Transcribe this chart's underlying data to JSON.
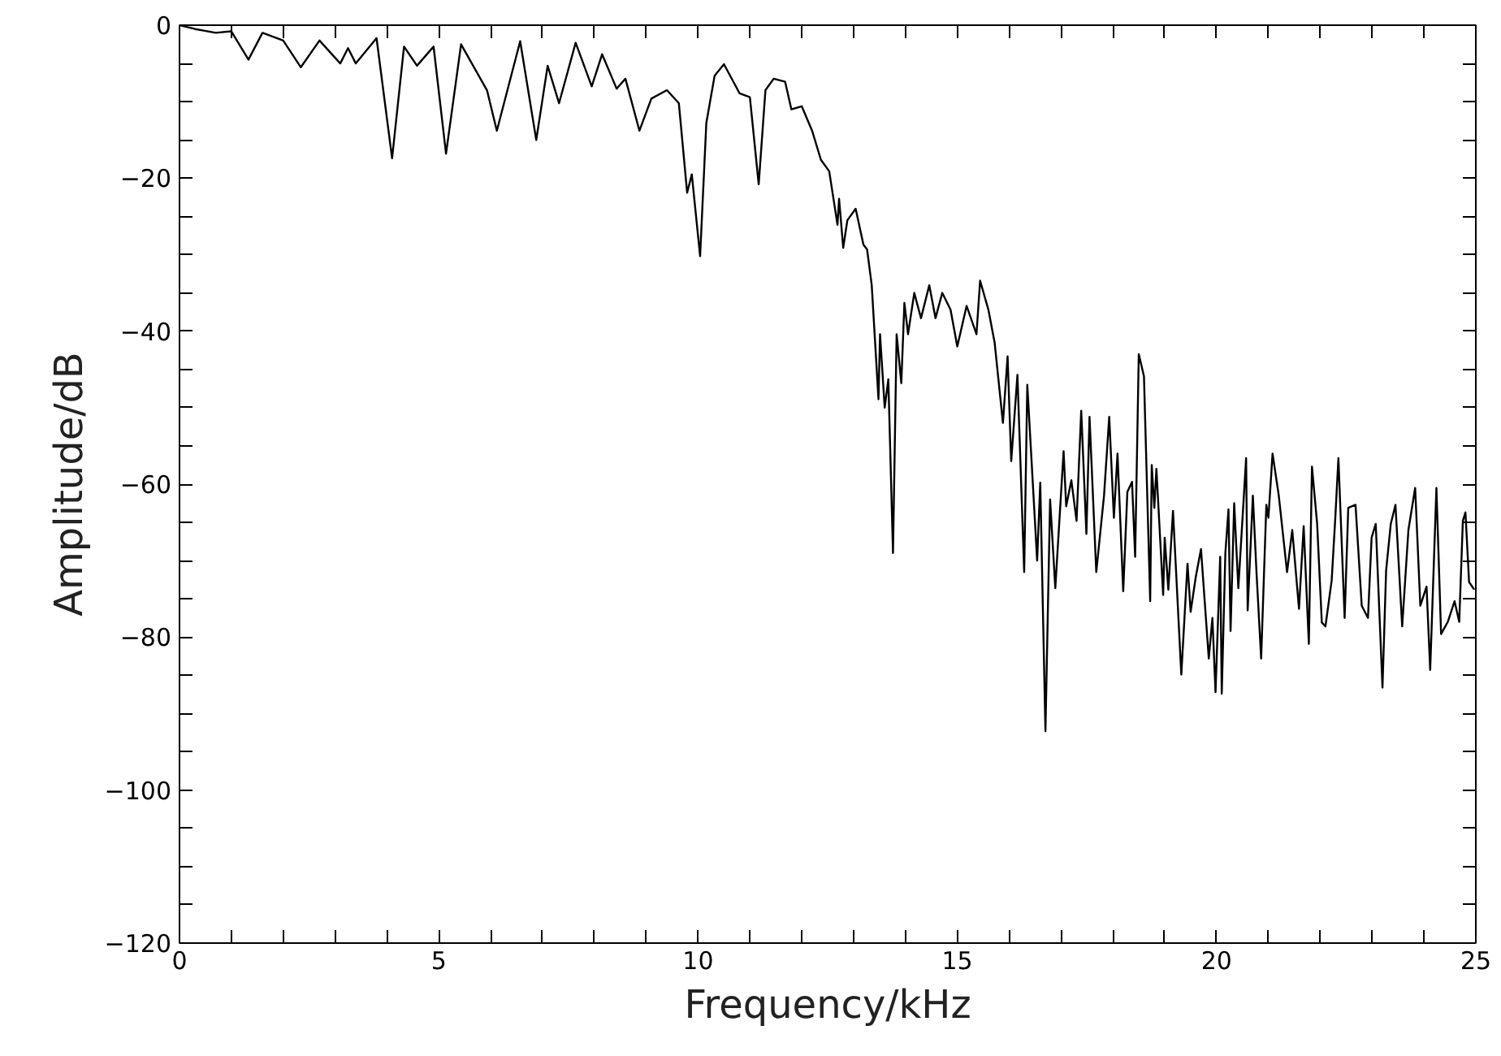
{
  "chart_data": {
    "type": "line",
    "xlabel": "Frequency/kHz",
    "ylabel": "Amplitude/dB",
    "xlim": [
      0,
      25
    ],
    "ylim": [
      -120,
      0
    ],
    "xticks": [
      0,
      {
        "value": 1,
        "label": null
      },
      {
        "value": 2,
        "label": null
      },
      {
        "value": 3,
        "label": null
      },
      {
        "value": 4,
        "label": null
      },
      5,
      {
        "value": 6,
        "label": null
      },
      {
        "value": 7,
        "label": null
      },
      {
        "value": 8,
        "label": null
      },
      {
        "value": 9,
        "label": null
      },
      10,
      {
        "value": 11,
        "label": null
      },
      {
        "value": 12,
        "label": null
      },
      {
        "value": 13,
        "label": null
      },
      {
        "value": 14,
        "label": null
      },
      15,
      {
        "value": 16,
        "label": null
      },
      {
        "value": 17,
        "label": null
      },
      {
        "value": 18,
        "label": null
      },
      {
        "value": 19,
        "label": null
      },
      20,
      {
        "value": 21,
        "label": null
      },
      {
        "value": 22,
        "label": null
      },
      {
        "value": 23,
        "label": null
      },
      {
        "value": 24,
        "label": null
      },
      25
    ],
    "yticks": [
      -120,
      {
        "value": -115,
        "label": null
      },
      {
        "value": -110,
        "label": null
      },
      {
        "value": -105,
        "label": null
      },
      -100,
      {
        "value": -95,
        "label": null
      },
      {
        "value": -90,
        "label": null
      },
      {
        "value": -85,
        "label": null
      },
      -80,
      {
        "value": -75,
        "label": null
      },
      {
        "value": -70,
        "label": null
      },
      {
        "value": -65,
        "label": null
      },
      -60,
      {
        "value": -55,
        "label": null
      },
      {
        "value": -50,
        "label": null
      },
      {
        "value": -45,
        "label": null
      },
      -40,
      {
        "value": -35,
        "label": null
      },
      {
        "value": -30,
        "label": null
      },
      {
        "value": -25,
        "label": null
      },
      -20,
      {
        "value": -15,
        "label": null
      },
      {
        "value": -10,
        "label": null
      },
      {
        "value": -5,
        "label": null
      },
      0
    ],
    "grid": false,
    "marker": "none",
    "line_style": "solid",
    "series": [
      {
        "color": "#000000",
        "x": [
          0,
          0.3,
          0.7,
          1.0,
          1.33,
          1.6,
          2.0,
          2.34,
          2.7,
          3.1,
          3.25,
          3.4,
          3.8,
          4.1,
          4.33,
          4.58,
          4.9,
          5.14,
          5.43,
          5.93,
          6.12,
          6.57,
          6.88,
          7.1,
          7.32,
          7.64,
          7.95,
          8.15,
          8.43,
          8.6,
          8.87,
          9.1,
          9.4,
          9.63,
          9.79,
          9.88,
          10.04,
          10.16,
          10.32,
          10.5,
          10.8,
          11.0,
          11.17,
          11.3,
          11.46,
          11.68,
          11.8,
          12.0,
          12.2,
          12.37,
          12.53,
          12.69,
          12.72,
          12.8,
          12.88,
          13.04,
          13.19,
          13.26,
          13.35,
          13.48,
          13.51,
          13.6,
          13.67,
          13.76,
          13.83,
          13.92,
          13.98,
          14.05,
          14.17,
          14.3,
          14.46,
          14.58,
          14.71,
          14.87,
          15.0,
          15.18,
          15.37,
          15.44,
          15.6,
          15.72,
          15.88,
          15.97,
          16.04,
          16.16,
          16.29,
          16.35,
          16.54,
          16.6,
          16.7,
          16.79,
          16.89,
          17.05,
          17.1,
          17.2,
          17.3,
          17.39,
          17.49,
          17.55,
          17.68,
          17.83,
          17.93,
          18.02,
          18.09,
          18.2,
          18.28,
          18.37,
          18.43,
          18.5,
          18.6,
          18.72,
          18.75,
          18.8,
          18.84,
          18.97,
          19.0,
          19.07,
          19.16,
          19.22,
          19.32,
          19.44,
          19.5,
          19.6,
          19.7,
          19.85,
          19.92,
          19.98,
          20.07,
          20.1,
          20.17,
          20.23,
          20.27,
          20.34,
          20.42,
          20.57,
          20.6,
          20.7,
          20.77,
          20.86,
          20.96,
          21.0,
          21.08,
          21.2,
          21.36,
          21.46,
          21.59,
          21.68,
          21.78,
          21.84,
          21.94,
          22.03,
          22.1,
          22.22,
          22.29,
          22.35,
          22.47,
          22.54,
          22.68,
          22.8,
          22.92,
          22.99,
          23.07,
          23.2,
          23.27,
          23.36,
          23.45,
          23.58,
          23.7,
          23.83,
          23.93,
          24.05,
          24.12,
          24.24,
          24.33,
          24.46,
          24.59,
          24.68,
          24.75,
          24.8,
          24.87,
          24.97
        ],
        "values": [
          0,
          -0.5,
          -1,
          -0.8,
          -4.5,
          -1,
          -2,
          -5.5,
          -2,
          -5,
          -3,
          -5,
          -1.7,
          -17.4,
          -2.8,
          -5.3,
          -2.8,
          -16.8,
          -2.5,
          -8.5,
          -13.8,
          -2.1,
          -15,
          -5.3,
          -10.2,
          -2.3,
          -8,
          -3.8,
          -8.3,
          -7,
          -13.8,
          -9.6,
          -8.5,
          -10.2,
          -21.9,
          -19.5,
          -30.2,
          -12.8,
          -6.6,
          -5.1,
          -8.9,
          -9.4,
          -20.8,
          -8.5,
          -7,
          -7.4,
          -11,
          -10.6,
          -13.8,
          -17.6,
          -19.1,
          -26.1,
          -22.7,
          -29.1,
          -25.5,
          -24,
          -28.7,
          -29.3,
          -34,
          -48.9,
          -40.4,
          -50,
          -46.3,
          -69,
          -40.4,
          -46.8,
          -36.3,
          -40.4,
          -35,
          -38.3,
          -34,
          -38.3,
          -35,
          -37.2,
          -42,
          -36.7,
          -40.4,
          -33.4,
          -37.2,
          -41.5,
          -52,
          -43.3,
          -57,
          -45.7,
          -71.5,
          -47,
          -70,
          -59.8,
          -92.3,
          -62,
          -73.6,
          -55.7,
          -62.9,
          -59.5,
          -64.8,
          -50.4,
          -66.5,
          -51.2,
          -71.5,
          -61.5,
          -51.2,
          -64.4,
          -56,
          -74,
          -61,
          -59.7,
          -69.5,
          -43,
          -45.9,
          -75.3,
          -57.5,
          -63.1,
          -58,
          -74.5,
          -67,
          -73.8,
          -63.5,
          -71.5,
          -84.9,
          -70.4,
          -76.7,
          -72.1,
          -68.5,
          -82.8,
          -77.5,
          -87.2,
          -69.5,
          -87.4,
          -69,
          -63.3,
          -79.2,
          -62.5,
          -73.6,
          -56.6,
          -76.5,
          -61.5,
          -71.5,
          -82.8,
          -62.7,
          -64.4,
          -56,
          -61.5,
          -71.5,
          -66,
          -76.3,
          -65.5,
          -80.9,
          -57.7,
          -65.2,
          -78.1,
          -78.6,
          -72.6,
          -64.4,
          -56.6,
          -77.5,
          -63.1,
          -62.7,
          -75.9,
          -77.5,
          -67,
          -65.2,
          -86.6,
          -71.3,
          -65.2,
          -62.7,
          -78.6,
          -66,
          -60.5,
          -75.9,
          -73.4,
          -84.3,
          -60.5,
          -79.6,
          -78,
          -75.3,
          -78,
          -64.8,
          -63.7,
          -72.8,
          -73.8
        ]
      }
    ]
  }
}
